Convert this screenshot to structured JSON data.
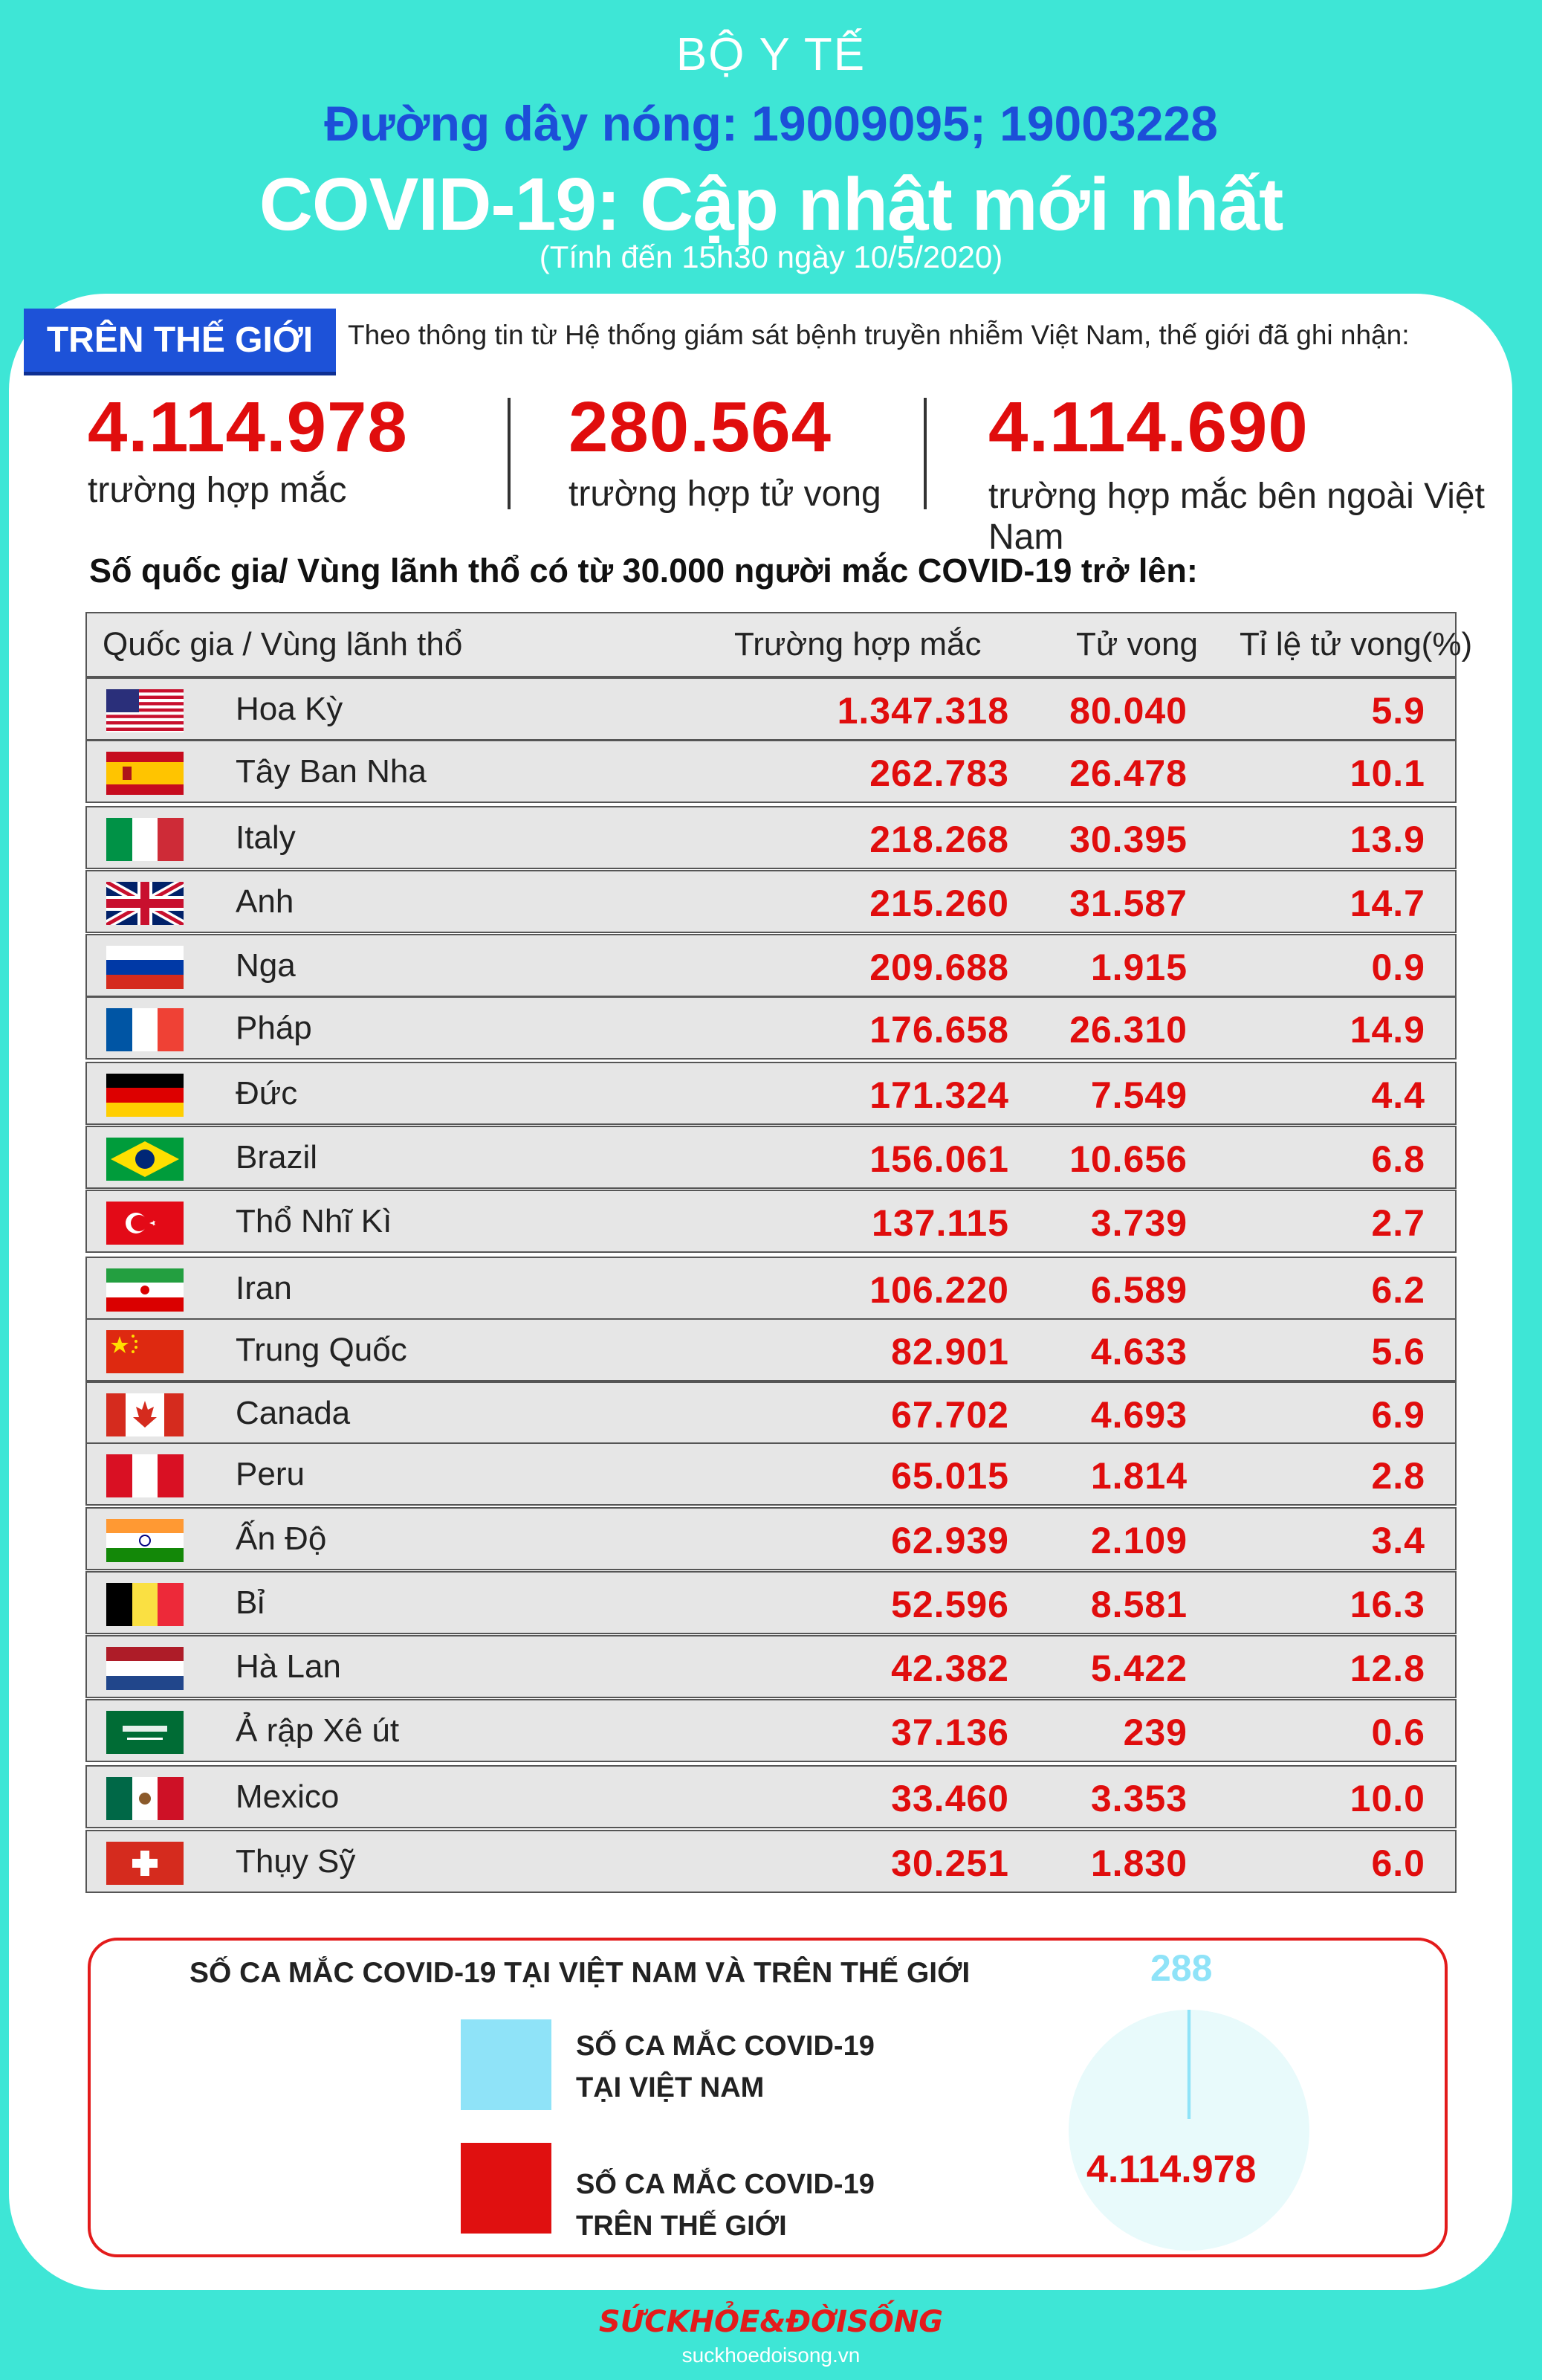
{
  "header": {
    "ministry": "BỘ Y TẾ",
    "hotline": "Đường dây nóng: 19009095; 19003228",
    "title": "COVID-19: Cập nhật mới nhất",
    "date": "(Tính đến 15h30 ngày 10/5/2020)"
  },
  "world": {
    "badge": "TRÊN THẾ GIỚI",
    "intro": "Theo thông tin từ Hệ thống giám sát bệnh truyền nhiễm Việt Nam, thế giới đã ghi nhận:",
    "stats": [
      {
        "value": "4.114.978",
        "label": "trường hợp mắc"
      },
      {
        "value": "280.564",
        "label": "trường hợp tử vong"
      },
      {
        "value": "4.114.690",
        "label": "trường hợp  mắc bên ngoài Việt Nam"
      }
    ]
  },
  "table": {
    "subheading": "Số quốc gia/ Vùng lãnh thổ có từ 30.000 người  mắc COVID-19 trở lên:",
    "headers": [
      "Quốc gia / Vùng lãnh thổ",
      "Trường hợp mắc",
      "Tử vong",
      "Tỉ lệ tử vong(%)"
    ],
    "rows": [
      {
        "flag": "us-flag",
        "name": "Hoa Kỳ",
        "cases": "1.347.318",
        "deaths": "80.040",
        "rate": "5.9"
      },
      {
        "flag": "spain-flag",
        "name": "Tây Ban Nha",
        "cases": "262.783",
        "deaths": "26.478",
        "rate": "10.1"
      },
      {
        "flag": "italy-flag",
        "name": "Italy",
        "cases": "218.268",
        "deaths": "30.395",
        "rate": "13.9"
      },
      {
        "flag": "uk-flag",
        "name": "Anh",
        "cases": "215.260",
        "deaths": "31.587",
        "rate": "14.7"
      },
      {
        "flag": "russia-flag",
        "name": "Nga",
        "cases": "209.688",
        "deaths": "1.915",
        "rate": "0.9"
      },
      {
        "flag": "france-flag",
        "name": "Pháp",
        "cases": "176.658",
        "deaths": "26.310",
        "rate": "14.9"
      },
      {
        "flag": "germany-flag",
        "name": "Đức",
        "cases": "171.324",
        "deaths": "7.549",
        "rate": "4.4"
      },
      {
        "flag": "brazil-flag",
        "name": "Brazil",
        "cases": "156.061",
        "deaths": "10.656",
        "rate": "6.8"
      },
      {
        "flag": "turkey-flag",
        "name": "Thổ Nhĩ Kì",
        "cases": "137.115",
        "deaths": "3.739",
        "rate": "2.7"
      },
      {
        "flag": "iran-flag",
        "name": "Iran",
        "cases": "106.220",
        "deaths": "6.589",
        "rate": "6.2"
      },
      {
        "flag": "china-flag",
        "name": "Trung Quốc",
        "cases": "82.901",
        "deaths": "4.633",
        "rate": "5.6"
      },
      {
        "flag": "canada-flag",
        "name": "Canada",
        "cases": "67.702",
        "deaths": "4.693",
        "rate": "6.9"
      },
      {
        "flag": "peru-flag",
        "name": "Peru",
        "cases": "65.015",
        "deaths": "1.814",
        "rate": "2.8"
      },
      {
        "flag": "india-flag",
        "name": "Ấn Độ",
        "cases": "62.939",
        "deaths": "2.109",
        "rate": "3.4"
      },
      {
        "flag": "belgium-flag",
        "name": "Bỉ",
        "cases": "52.596",
        "deaths": "8.581",
        "rate": "16.3"
      },
      {
        "flag": "netherlands-flag",
        "name": "Hà Lan",
        "cases": "42.382",
        "deaths": "5.422",
        "rate": "12.8"
      },
      {
        "flag": "saudi-flag",
        "name": "Ả rập Xê út",
        "cases": "37.136",
        "deaths": "239",
        "rate": "0.6"
      },
      {
        "flag": "mexico-flag",
        "name": "Mexico",
        "cases": "33.460",
        "deaths": "3.353",
        "rate": "10.0"
      },
      {
        "flag": "switzerland-flag",
        "name": "Thụy Sỹ",
        "cases": "30.251",
        "deaths": "1.830",
        "rate": "6.0"
      }
    ]
  },
  "chart_data": {
    "type": "pie",
    "title": "SỐ CA MẮC COVID-19 TẠI VIỆT NAM VÀ TRÊN THẾ GIỚI",
    "slices": [
      {
        "label": "SỐ CA MẮC COVID-19 TẠI VIỆT NAM",
        "value": 288,
        "value_label": "288",
        "color": "#8fe3f8"
      },
      {
        "label": "SỐ CA MẮC COVID-19 TRÊN THẾ GIỚI",
        "value": 4114978,
        "value_label": "4.114.978",
        "color": "#e01010"
      }
    ],
    "legend": "left"
  },
  "footer": {
    "logo": "SỨCKHỎE&ĐỜISỐNG",
    "url": "suckhoedoisong.vn"
  },
  "colors": {
    "background": "#3ee6d6",
    "accent_blue": "#1d52d8",
    "number_red": "#e00d0d"
  }
}
